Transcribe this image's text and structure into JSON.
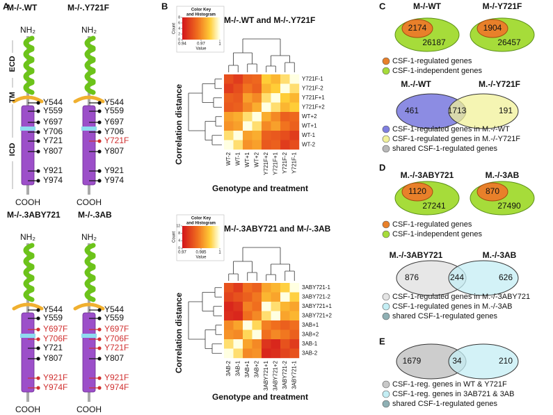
{
  "panel_a": {
    "label": "A",
    "domains": [
      "ECD",
      "TM",
      "ICD"
    ],
    "constructs": [
      {
        "title": "M-/-.WT",
        "n_terminus": "NH₂",
        "c_terminus": "COOH",
        "residues": [
          {
            "label": "Y544",
            "mutated": false
          },
          {
            "label": "Y559",
            "mutated": false
          },
          {
            "label": "Y697",
            "mutated": false
          },
          {
            "label": "Y706",
            "mutated": false
          },
          {
            "label": "Y721",
            "mutated": false
          },
          {
            "label": "Y807",
            "mutated": false
          },
          {
            "label": "Y921",
            "mutated": false
          },
          {
            "label": "Y974",
            "mutated": false
          }
        ]
      },
      {
        "title": "M-/-.Y721F",
        "n_terminus": "NH₂",
        "c_terminus": "COOH",
        "residues": [
          {
            "label": "Y544",
            "mutated": false
          },
          {
            "label": "Y559",
            "mutated": false
          },
          {
            "label": "Y697",
            "mutated": false
          },
          {
            "label": "Y706",
            "mutated": false
          },
          {
            "label": "Y721F",
            "mutated": true
          },
          {
            "label": "Y807",
            "mutated": false
          },
          {
            "label": "Y921",
            "mutated": false
          },
          {
            "label": "Y974",
            "mutated": false
          }
        ]
      },
      {
        "title": "M-/-.3ABY721",
        "n_terminus": "NH₂",
        "c_terminus": "COOH",
        "residues": [
          {
            "label": "Y544",
            "mutated": false
          },
          {
            "label": "Y559",
            "mutated": false
          },
          {
            "label": "Y697F",
            "mutated": true
          },
          {
            "label": "Y706F",
            "mutated": true
          },
          {
            "label": "Y721",
            "mutated": false
          },
          {
            "label": "Y807",
            "mutated": false
          },
          {
            "label": "Y921F",
            "mutated": true
          },
          {
            "label": "Y974F",
            "mutated": true
          }
        ]
      },
      {
        "title": "M-/-.3AB",
        "n_terminus": "NH₂",
        "c_terminus": "COOH",
        "residues": [
          {
            "label": "Y544",
            "mutated": false
          },
          {
            "label": "Y559",
            "mutated": false
          },
          {
            "label": "Y697F",
            "mutated": true
          },
          {
            "label": "Y706F",
            "mutated": true
          },
          {
            "label": "Y721F",
            "mutated": true
          },
          {
            "label": "Y807",
            "mutated": false
          },
          {
            "label": "Y921F",
            "mutated": true
          },
          {
            "label": "Y974F",
            "mutated": true
          }
        ]
      }
    ]
  },
  "panel_b": {
    "label": "B",
    "heatmaps": [
      {
        "title": "M-/-.WT and M-/-.Y721F",
        "key_title": [
          "Color Key",
          "and Histogram"
        ],
        "key_xlabel": "Value",
        "key_ylabel": "Count",
        "key_xticks": [
          0.94,
          0.97,
          1
        ],
        "key_yticks": [
          0,
          2,
          4,
          6,
          8
        ],
        "row_labels": [
          "Y721F-1",
          "Y721F-2",
          "Y721F+1",
          "Y721F+2",
          "WT+2",
          "WT+1",
          "WT-1",
          "WT-2"
        ],
        "col_labels": [
          "WT-2",
          "WT-1",
          "WT+1",
          "WT+2",
          "Y721F+2",
          "Y721F+1",
          "Y721F-2",
          "Y721F-1"
        ],
        "matrix": [
          [
            0.955,
            0.95,
            0.96,
            0.962,
            0.985,
            0.98,
            0.99,
            1
          ],
          [
            0.95,
            0.955,
            0.965,
            0.96,
            0.98,
            0.985,
            1,
            0.99
          ],
          [
            0.96,
            0.958,
            0.975,
            0.97,
            0.99,
            1,
            0.985,
            0.98
          ],
          [
            0.958,
            0.96,
            0.97,
            0.978,
            1,
            0.99,
            0.98,
            0.985
          ],
          [
            0.975,
            0.978,
            0.99,
            1,
            0.978,
            0.97,
            0.96,
            0.962
          ],
          [
            0.972,
            0.975,
            1,
            0.99,
            0.97,
            0.975,
            0.965,
            0.96
          ],
          [
            0.99,
            1,
            0.975,
            0.978,
            0.96,
            0.958,
            0.955,
            0.95
          ],
          [
            1,
            0.99,
            0.972,
            0.975,
            0.958,
            0.96,
            0.95,
            0.955
          ]
        ],
        "y_axis_label": "Correlation distance",
        "x_axis_label": "Genotype and treatment"
      },
      {
        "title": "M-/-.3ABY721 and M-/-.3AB",
        "key_title": [
          "Color Key",
          "and Histogram"
        ],
        "key_xlabel": "Value",
        "key_ylabel": "Count",
        "key_xticks": [
          0.97,
          0.985,
          1
        ],
        "key_yticks": [
          0,
          4,
          8,
          12
        ],
        "row_labels": [
          "3ABY721-1",
          "3ABY721-2",
          "3ABY721+1",
          "3ABY721+2",
          "3AB+1",
          "3AB+2",
          "3AB-1",
          "3AB-2"
        ],
        "col_labels": [
          "3AB-2",
          "3AB-1",
          "3AB+1",
          "3AB+2",
          "3ABY721+1",
          "3ABY721+2",
          "3ABY721-2",
          "3ABY721-1"
        ],
        "matrix": [
          [
            0.978,
            0.975,
            0.982,
            0.98,
            0.988,
            0.99,
            0.993,
            1
          ],
          [
            0.976,
            0.978,
            0.98,
            0.983,
            0.99,
            0.988,
            1,
            0.993
          ],
          [
            0.972,
            0.974,
            0.984,
            0.982,
            1,
            0.995,
            0.99,
            0.988
          ],
          [
            0.973,
            0.972,
            0.982,
            0.985,
            0.995,
            1,
            0.988,
            0.99
          ],
          [
            0.985,
            0.988,
            1,
            0.994,
            0.984,
            0.982,
            0.98,
            0.982
          ],
          [
            0.986,
            0.985,
            0.994,
            1,
            0.982,
            0.985,
            0.983,
            0.98
          ],
          [
            0.995,
            1,
            0.988,
            0.985,
            0.974,
            0.972,
            0.978,
            0.975
          ],
          [
            1,
            0.995,
            0.985,
            0.986,
            0.972,
            0.973,
            0.976,
            0.978
          ]
        ],
        "y_axis_label": "Correlation distance",
        "x_axis_label": "Genotype and treatment"
      }
    ]
  },
  "panel_c": {
    "label": "C",
    "ovals": [
      {
        "title": "M-/-WT",
        "regulated": 2174,
        "independent": 26187
      },
      {
        "title": "M-/-Y721F",
        "regulated": 1904,
        "independent": 26457
      }
    ],
    "oval_legend": [
      "CSF-1-regulated genes",
      "CSF-1-independent genes"
    ],
    "venn": {
      "titles": [
        "M.-/-WT",
        "M.-/-Y721F"
      ],
      "counts": [
        461,
        1713,
        191
      ],
      "colors": [
        "#7f7fe0",
        "#f2f29a",
        "#b8b8b8"
      ]
    },
    "venn_legend": [
      "CSF-1-regulated genes in M.-/-WT",
      "CSF-1-regulated genes in M.-/-Y721F",
      "shared CSF-1-regulated genes"
    ]
  },
  "panel_d": {
    "label": "D",
    "ovals": [
      {
        "title": "M.-/-3ABY721",
        "regulated": 1120,
        "independent": 27241
      },
      {
        "title": "M.-/-3AB",
        "regulated": 870,
        "independent": 27490
      }
    ],
    "oval_legend": [
      "CSF-1-regulated genes",
      "CSF-1-independent genes"
    ],
    "venn": {
      "titles": [
        "M.-/-3ABY721",
        "M.-/-3AB"
      ],
      "counts": [
        876,
        244,
        626
      ],
      "colors": [
        "#e4e4e4",
        "#c4eef4",
        "#8fb0b4"
      ]
    },
    "venn_legend": [
      "CSF-1-regulated genes in M.-/-3ABY721",
      "CSF-1-regulated genes in M.-/-3AB",
      "shared CSF-1-regulated genes"
    ]
  },
  "panel_e": {
    "label": "E",
    "venn": {
      "counts": [
        1679,
        34,
        210
      ],
      "colors": [
        "#c8c8c8",
        "#c4eef4",
        "#8fb0b4"
      ]
    },
    "venn_legend": [
      "CSF-1-reg. genes in WT & Y721F",
      "CSF-1-reg. genes in  3AB721 & 3AB",
      "shared CSF-1-regulated genes"
    ]
  }
}
